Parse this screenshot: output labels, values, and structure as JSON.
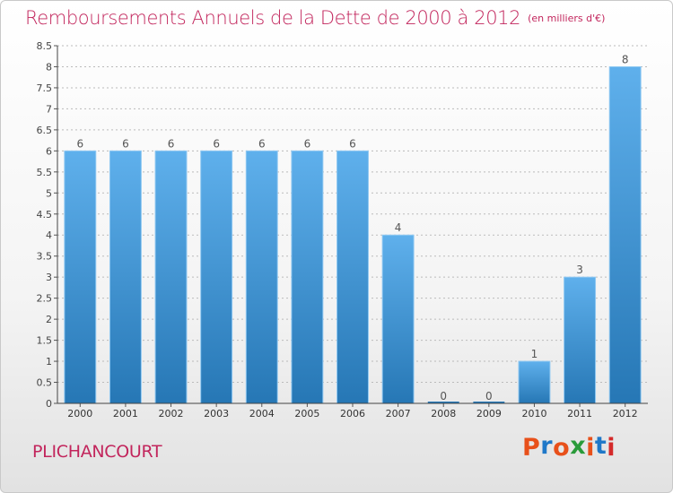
{
  "header": {
    "title": "Remboursements Annuels de la Dette de 2000 à 2012",
    "unit": "(en milliers d'€)"
  },
  "footer": {
    "commune": "PLICHANCOURT",
    "logo_text": "Proxiti",
    "logo_colors": [
      "#e8501a",
      "#1f78c8",
      "#e8501a",
      "#2a9b3a",
      "#e8501a",
      "#1f78c8",
      "#d42a2a"
    ]
  },
  "colors": {
    "title": "#c2255c",
    "bar_top": "#5fb0ec",
    "bar_bottom": "#2677b5",
    "grid": "#bbbbbb"
  },
  "chart_data": {
    "type": "bar",
    "title": "Remboursements Annuels de la Dette de 2000 à 2012",
    "subtitle": "(en milliers d'€)",
    "xlabel": "",
    "ylabel": "",
    "categories": [
      "2000",
      "2001",
      "2002",
      "2003",
      "2004",
      "2005",
      "2006",
      "2007",
      "2008",
      "2009",
      "2010",
      "2011",
      "2012"
    ],
    "values": [
      6,
      6,
      6,
      6,
      6,
      6,
      6,
      4,
      0,
      0,
      1,
      3,
      8
    ],
    "data_labels": [
      "6",
      "6",
      "6",
      "6",
      "6",
      "6",
      "6",
      "4",
      "0",
      "0",
      "1",
      "3",
      "8"
    ],
    "ylim": [
      0,
      8.5
    ],
    "yticks": [
      0,
      0.5,
      1,
      1.5,
      2,
      2.5,
      3,
      3.5,
      4,
      4.5,
      5,
      5.5,
      6,
      6.5,
      7,
      7.5,
      8,
      8.5
    ],
    "ytick_labels": [
      "0",
      "0.5",
      "1",
      "1.5",
      "2",
      "2.5",
      "3",
      "3.5",
      "4",
      "4.5",
      "5",
      "5.5",
      "6",
      "6.5",
      "7",
      "7.5",
      "8",
      "8.5"
    ],
    "grid": true
  }
}
